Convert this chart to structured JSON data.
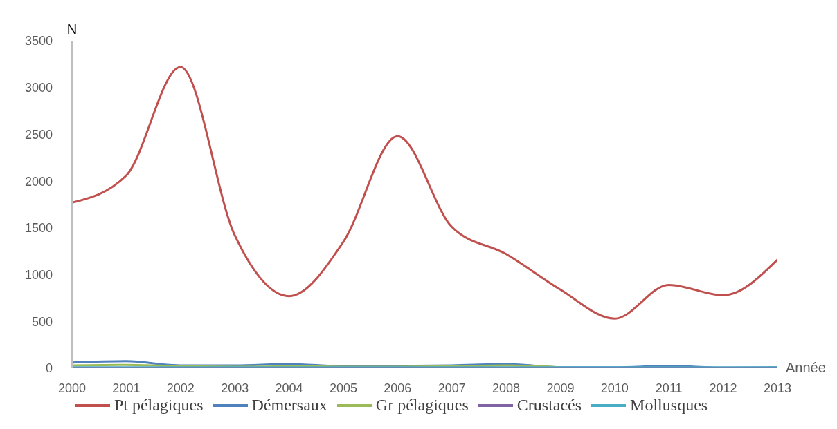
{
  "chart_data": {
    "type": "line",
    "xlabel": "Année",
    "ylabel": "N",
    "categories": [
      "2000",
      "2001",
      "2002",
      "2003",
      "2004",
      "2005",
      "2006",
      "2007",
      "2008",
      "2009",
      "2010",
      "2011",
      "2012",
      "2013"
    ],
    "series": [
      {
        "name": "Pt pélagiques",
        "color": "#c0504d",
        "values": [
          1770,
          2060,
          3220,
          1420,
          770,
          1350,
          2480,
          1510,
          1220,
          840,
          530,
          890,
          780,
          1160
        ]
      },
      {
        "name": "Démersaux",
        "color": "#4f81bd",
        "values": [
          60,
          75,
          30,
          30,
          45,
          20,
          25,
          30,
          45,
          10,
          10,
          25,
          5,
          10
        ]
      },
      {
        "name": "Gr pélagiques",
        "color": "#9bbb59",
        "values": [
          30,
          35,
          20,
          15,
          20,
          15,
          15,
          20,
          30,
          10,
          null,
          null,
          null,
          null
        ]
      },
      {
        "name": "Crustacés",
        "color": "#8064a2",
        "values": [
          0,
          0,
          0,
          0,
          0,
          0,
          0,
          0,
          0,
          0,
          0,
          0,
          0,
          0
        ]
      },
      {
        "name": "Mollusques",
        "color": "#4bacc6",
        "values": [
          10,
          10,
          10,
          10,
          10,
          10,
          10,
          10,
          10,
          10,
          10,
          10,
          10,
          10
        ]
      }
    ],
    "ylim": [
      0,
      3500
    ],
    "yticks": [
      0,
      500,
      1000,
      1500,
      2000,
      2500,
      3000,
      3500
    ],
    "grid": false,
    "legend": "bottom",
    "marker": "none",
    "line_style": "solid"
  }
}
